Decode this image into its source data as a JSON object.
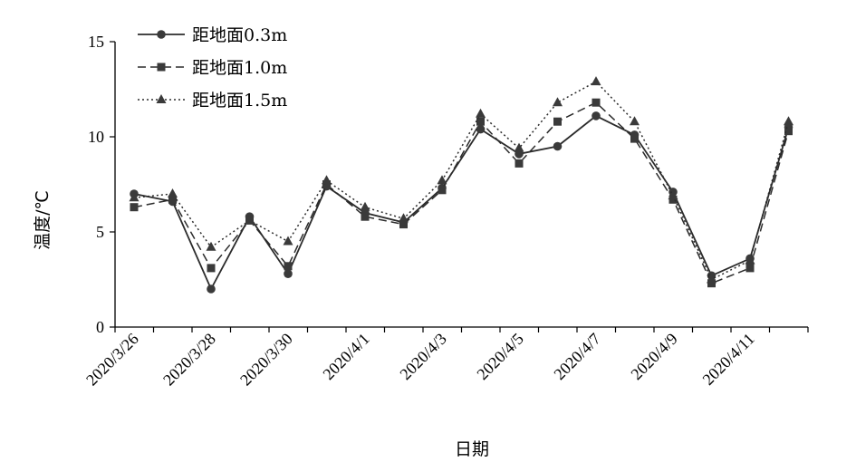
{
  "chart_data": {
    "type": "line",
    "xlabel": "日期",
    "ylabel": "温度/℃",
    "ylim": [
      0,
      15
    ],
    "yticks": [
      0,
      5,
      10,
      15
    ],
    "x": [
      "2020/3/26",
      "2020/3/27",
      "2020/3/28",
      "2020/3/29",
      "2020/3/30",
      "2020/3/31",
      "2020/4/1",
      "2020/4/2",
      "2020/4/3",
      "2020/4/4",
      "2020/4/5",
      "2020/4/6",
      "2020/4/7",
      "2020/4/8",
      "2020/4/9",
      "2020/4/10",
      "2020/4/11",
      "2020/4/12"
    ],
    "xtick_labels": [
      "2020/3/26",
      "2020/3/28",
      "2020/3/30",
      "2020/4/1",
      "2020/4/3",
      "2020/4/5",
      "2020/4/7",
      "2020/4/9",
      "2020/4/11"
    ],
    "legend_position": "top-left",
    "grid": false,
    "series": [
      {
        "name": "距地面0.3m",
        "marker": "circle",
        "dash": "solid",
        "values": [
          7.0,
          6.6,
          2.0,
          5.8,
          2.8,
          7.4,
          6.0,
          5.5,
          7.3,
          10.4,
          9.1,
          9.5,
          11.1,
          10.1,
          7.1,
          2.7,
          3.6,
          10.5
        ]
      },
      {
        "name": "距地面1.0m",
        "marker": "square",
        "dash": "dashed",
        "values": [
          6.3,
          6.7,
          3.1,
          5.6,
          3.2,
          7.5,
          5.8,
          5.4,
          7.2,
          10.8,
          8.6,
          10.8,
          11.8,
          9.9,
          6.7,
          2.3,
          3.1,
          10.3
        ]
      },
      {
        "name": "距地面1.5m",
        "marker": "triangle",
        "dash": "dotted",
        "values": [
          6.8,
          7.0,
          4.2,
          5.6,
          4.5,
          7.7,
          6.3,
          5.7,
          7.7,
          11.2,
          9.4,
          11.8,
          12.9,
          10.8,
          6.9,
          2.5,
          3.5,
          10.8
        ]
      }
    ]
  }
}
